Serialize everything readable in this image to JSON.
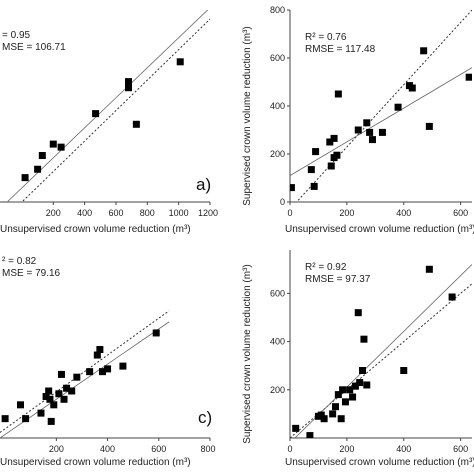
{
  "chart_data": [
    {
      "type": "scatter",
      "panel_label": "a)",
      "stats": [
        "= 0.95",
        "MSE = 106.71"
      ],
      "xlabel": "Unsupervised crown volume reduction (m³)",
      "ylabel": "",
      "xlim": [
        -140,
        1200
      ],
      "ylim": [
        0,
        1260
      ],
      "xticks": [
        "200",
        "400",
        "600",
        "800",
        "1000",
        "1200"
      ],
      "xtick_values": [
        200,
        400,
        600,
        800,
        1000,
        1200
      ],
      "yticks": [],
      "ytick_values": [],
      "x": [
        20,
        100,
        130,
        200,
        250,
        470,
        680,
        680,
        730,
        1010
      ],
      "y": [
        160,
        215,
        305,
        380,
        360,
        580,
        790,
        750,
        510,
        920
      ],
      "fit_line": [
        [
          -140,
          -45
        ],
        [
          1200,
          1275
        ]
      ],
      "identity_line": [
        [
          -140,
          -140
        ],
        [
          1200,
          1200
        ]
      ]
    },
    {
      "type": "scatter",
      "panel_label": "",
      "stats": [
        "R² = 0.76",
        "RMSE = 117.48"
      ],
      "xlabel": "Unsupervised crown volume reduction (m³)",
      "ylabel": "Supervised crown volume reduction (m³)",
      "xlim": [
        0,
        640
      ],
      "ylim": [
        0,
        800
      ],
      "xticks": [
        "0",
        "200",
        "400",
        "600"
      ],
      "xtick_values": [
        0,
        200,
        400,
        600
      ],
      "yticks": [
        "0",
        "200",
        "400",
        "600",
        "800"
      ],
      "ytick_values": [
        0,
        200,
        400,
        600,
        800
      ],
      "x": [
        5,
        75,
        85,
        90,
        140,
        145,
        155,
        155,
        165,
        170,
        240,
        270,
        280,
        290,
        325,
        380,
        420,
        430,
        470,
        490,
        630
      ],
      "y": [
        60,
        135,
        65,
        210,
        250,
        150,
        185,
        265,
        195,
        450,
        300,
        330,
        290,
        260,
        290,
        395,
        485,
        475,
        630,
        315,
        520
      ],
      "fit_line": [
        [
          0,
          110
        ],
        [
          640,
          560
        ]
      ],
      "identity_line": [
        [
          0,
          -30
        ],
        [
          640,
          800
        ]
      ]
    },
    {
      "type": "scatter",
      "panel_label": "c)",
      "stats": [
        "² = 0.82",
        "MSE = 79.16"
      ],
      "xlabel": "Unsupervised crown volume reduction (m³)",
      "ylabel": "",
      "xlim": [
        -20,
        800
      ],
      "ylim": [
        -40,
        640
      ],
      "xticks": [
        "200",
        "400",
        "600",
        "800"
      ],
      "xtick_values": [
        200,
        400,
        600,
        800
      ],
      "yticks": [],
      "ytick_values": [],
      "x": [
        0,
        60,
        80,
        140,
        160,
        170,
        175,
        180,
        190,
        210,
        220,
        230,
        240,
        260,
        280,
        330,
        360,
        370,
        380,
        400,
        460,
        590
      ],
      "y": [
        30,
        80,
        30,
        50,
        110,
        130,
        100,
        20,
        80,
        120,
        190,
        100,
        140,
        130,
        180,
        200,
        260,
        280,
        200,
        210,
        220,
        340
      ],
      "fit_line": [
        [
          -20,
          -40
        ],
        [
          640,
          380
        ]
      ],
      "identity_line": [
        [
          -20,
          -20
        ],
        [
          640,
          420
        ]
      ]
    },
    {
      "type": "scatter",
      "panel_label": "",
      "stats": [
        "R² = 0.92",
        "RMSE = 97.37"
      ],
      "xlabel": "Unsupervised crown volume reduction (m³)",
      "ylabel": "Supervised crown volume reduction (m³)",
      "xlim": [
        0,
        640
      ],
      "ylim": [
        0,
        780
      ],
      "xticks": [
        "0",
        "200",
        "400",
        "600"
      ],
      "xtick_values": [
        0,
        200,
        400,
        600
      ],
      "yticks": [
        "200",
        "400",
        "600"
      ],
      "ytick_values": [
        200,
        400,
        600
      ],
      "x": [
        20,
        70,
        100,
        110,
        120,
        150,
        160,
        170,
        180,
        185,
        195,
        210,
        220,
        230,
        240,
        245,
        255,
        260,
        270,
        400,
        490,
        570
      ],
      "y": [
        40,
        10,
        90,
        95,
        80,
        100,
        130,
        180,
        80,
        200,
        150,
        200,
        170,
        215,
        520,
        230,
        280,
        410,
        220,
        280,
        700,
        585
      ],
      "fit_line": [
        [
          0,
          -20
        ],
        [
          640,
          720
        ]
      ],
      "identity_line": [
        [
          0,
          0
        ],
        [
          640,
          640
        ]
      ]
    }
  ]
}
